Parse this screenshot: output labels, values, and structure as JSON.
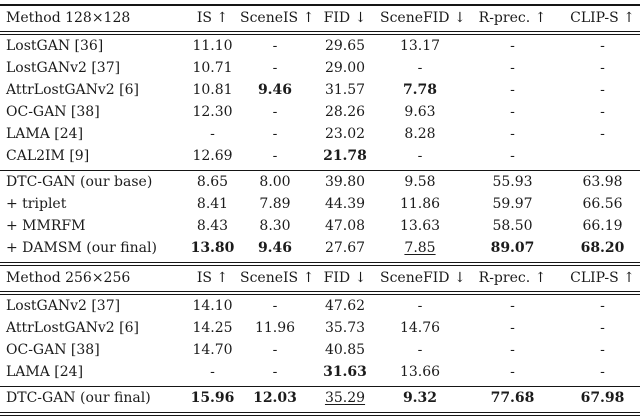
{
  "colors": {
    "background": "#ffffff",
    "text": "#1b1b1b",
    "rule": "#151515"
  },
  "tables": [
    {
      "name": "results-128x128",
      "headers": [
        "Method 128×128",
        "IS ↑",
        "SceneIS ↑",
        "FID ↓",
        "SceneFID ↓",
        "R-prec. ↑",
        "CLIP-S ↑"
      ],
      "groups": [
        {
          "rows": [
            {
              "method": "LostGAN [36]",
              "cells": [
                {
                  "t": "11.10"
                },
                {
                  "t": "-"
                },
                {
                  "t": "29.65"
                },
                {
                  "t": "13.17"
                },
                {
                  "t": "-"
                },
                {
                  "t": "-"
                }
              ]
            },
            {
              "method": "LostGANv2 [37]",
              "cells": [
                {
                  "t": "10.71"
                },
                {
                  "t": "-"
                },
                {
                  "t": "29.00"
                },
                {
                  "t": "-"
                },
                {
                  "t": "-"
                },
                {
                  "t": "-"
                }
              ]
            },
            {
              "method": "AttrLostGANv2 [6]",
              "cells": [
                {
                  "t": "10.81"
                },
                {
                  "t": "9.46",
                  "f": "b"
                },
                {
                  "t": "31.57"
                },
                {
                  "t": "7.78",
                  "f": "b"
                },
                {
                  "t": "-"
                },
                {
                  "t": "-"
                }
              ]
            },
            {
              "method": "OC-GAN [38]",
              "cells": [
                {
                  "t": "12.30"
                },
                {
                  "t": "-"
                },
                {
                  "t": "28.26"
                },
                {
                  "t": "9.63"
                },
                {
                  "t": "-"
                },
                {
                  "t": "-"
                }
              ]
            },
            {
              "method": "LAMA [24]",
              "cells": [
                {
                  "t": "-"
                },
                {
                  "t": "-"
                },
                {
                  "t": "23.02"
                },
                {
                  "t": "8.28"
                },
                {
                  "t": "-"
                },
                {
                  "t": "-"
                }
              ]
            },
            {
              "method": "CAL2IM [9]",
              "cells": [
                {
                  "t": "12.69"
                },
                {
                  "t": "-"
                },
                {
                  "t": "21.78",
                  "f": "b"
                },
                {
                  "t": "-"
                },
                {
                  "t": "-"
                },
                {
                  "t": ""
                }
              ]
            }
          ]
        },
        {
          "rows": [
            {
              "method": "DTC-GAN (our base)",
              "cells": [
                {
                  "t": "8.65"
                },
                {
                  "t": "8.00"
                },
                {
                  "t": "39.80"
                },
                {
                  "t": "9.58"
                },
                {
                  "t": "55.93"
                },
                {
                  "t": "63.98"
                }
              ]
            },
            {
              "method": "+ triplet",
              "cells": [
                {
                  "t": "8.41"
                },
                {
                  "t": "7.89"
                },
                {
                  "t": "44.39"
                },
                {
                  "t": "11.86"
                },
                {
                  "t": "59.97"
                },
                {
                  "t": "66.56"
                }
              ]
            },
            {
              "method": "+ MMRFM",
              "cells": [
                {
                  "t": "8.43"
                },
                {
                  "t": "8.30"
                },
                {
                  "t": "47.08"
                },
                {
                  "t": "13.63"
                },
                {
                  "t": "58.50"
                },
                {
                  "t": "66.19"
                }
              ]
            },
            {
              "method": "+ DAMSM (our final)",
              "cells": [
                {
                  "t": "13.80",
                  "f": "b"
                },
                {
                  "t": "9.46",
                  "f": "b"
                },
                {
                  "t": "27.67"
                },
                {
                  "t": "7.85",
                  "f": "u"
                },
                {
                  "t": "89.07",
                  "f": "b"
                },
                {
                  "t": "68.20",
                  "f": "b"
                }
              ]
            }
          ]
        }
      ]
    },
    {
      "name": "results-256x256",
      "headers": [
        "Method 256×256",
        "IS ↑",
        "SceneIS ↑",
        "FID ↓",
        "SceneFID ↓",
        "R-prec. ↑",
        "CLIP-S ↑"
      ],
      "groups": [
        {
          "rows": [
            {
              "method": "LostGANv2 [37]",
              "cells": [
                {
                  "t": "14.10"
                },
                {
                  "t": "-"
                },
                {
                  "t": "47.62"
                },
                {
                  "t": "-"
                },
                {
                  "t": "-"
                },
                {
                  "t": "-"
                }
              ]
            },
            {
              "method": "AttrLostGANv2 [6]",
              "cells": [
                {
                  "t": "14.25"
                },
                {
                  "t": "11.96"
                },
                {
                  "t": "35.73"
                },
                {
                  "t": "14.76"
                },
                {
                  "t": "-"
                },
                {
                  "t": "-"
                }
              ]
            },
            {
              "method": "OC-GAN [38]",
              "cells": [
                {
                  "t": "14.70"
                },
                {
                  "t": "-"
                },
                {
                  "t": "40.85"
                },
                {
                  "t": "-"
                },
                {
                  "t": "-"
                },
                {
                  "t": "-"
                }
              ]
            },
            {
              "method": "LAMA [24]",
              "cells": [
                {
                  "t": "-"
                },
                {
                  "t": "-"
                },
                {
                  "t": "31.63",
                  "f": "b"
                },
                {
                  "t": "13.66"
                },
                {
                  "t": "-"
                },
                {
                  "t": "-"
                }
              ]
            }
          ]
        },
        {
          "rows": [
            {
              "method": "DTC-GAN (our final)",
              "cells": [
                {
                  "t": "15.96",
                  "f": "b"
                },
                {
                  "t": "12.03",
                  "f": "b"
                },
                {
                  "t": "35.29",
                  "f": "u"
                },
                {
                  "t": "9.32",
                  "f": "b"
                },
                {
                  "t": "77.68",
                  "f": "b"
                },
                {
                  "t": "67.98",
                  "f": "b"
                }
              ]
            }
          ]
        }
      ]
    }
  ]
}
